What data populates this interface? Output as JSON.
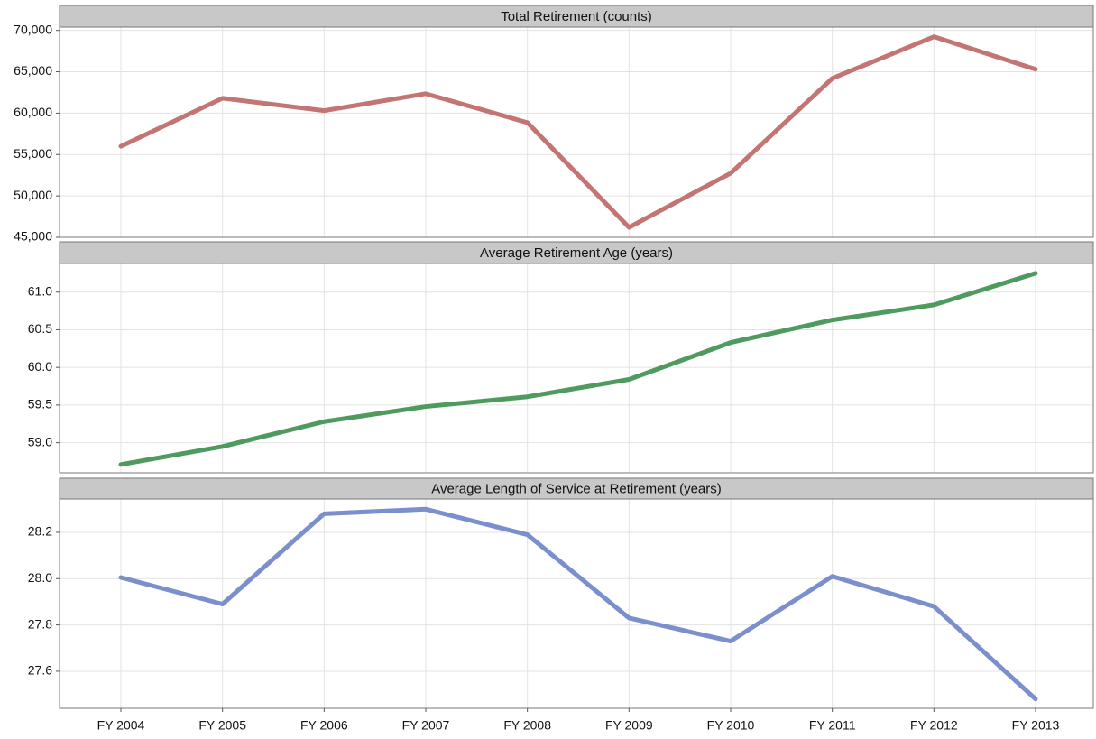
{
  "chart_data": [
    {
      "type": "line",
      "title": "Total Retirement (counts)",
      "series": [
        {
          "color": "#c27572",
          "values": [
            56000,
            61800,
            60300,
            62350,
            58860,
            46200,
            52750,
            64200,
            69240,
            65300
          ]
        }
      ],
      "ylim": [
        45000,
        70400
      ],
      "yticks": [
        {
          "value": 45000,
          "label": "45,000"
        },
        {
          "value": 50000,
          "label": "50,000"
        },
        {
          "value": 55000,
          "label": "55,000"
        },
        {
          "value": 60000,
          "label": "60,000"
        },
        {
          "value": 65000,
          "label": "65,000"
        },
        {
          "value": 70000,
          "label": "70,000"
        }
      ],
      "grid": true
    },
    {
      "type": "line",
      "title": "Average Retirement Age (years)",
      "series": [
        {
          "color": "#4f9a5e",
          "values": [
            58.71,
            58.95,
            59.28,
            59.48,
            59.61,
            59.84,
            60.33,
            60.63,
            60.83,
            61.25
          ]
        }
      ],
      "ylim": [
        58.6,
        61.38
      ],
      "yticks": [
        {
          "value": 59,
          "label": "59.0"
        },
        59.5,
        {
          "value": 60,
          "label": "60.0"
        },
        60.5,
        {
          "value": 61,
          "label": "61.0"
        }
      ],
      "grid": true
    },
    {
      "type": "line",
      "title": "Average Length of Service at Retirement (years)",
      "categories": [
        "FY 2004",
        "FY 2005",
        "FY 2006",
        "FY 2007",
        "FY 2008",
        "FY 2009",
        "FY 2010",
        "FY 2011",
        "FY 2012",
        "FY 2013"
      ],
      "series": [
        {
          "color": "#7a8fcb",
          "values": [
            28.005,
            27.89,
            28.28,
            28.3,
            28.19,
            27.83,
            27.73,
            28.01,
            27.88,
            27.48
          ]
        }
      ],
      "ylim": [
        27.44,
        28.344
      ],
      "yticks": [
        27.6,
        27.8,
        {
          "value": 28,
          "label": "28.0"
        },
        28.2
      ],
      "grid": true
    }
  ]
}
